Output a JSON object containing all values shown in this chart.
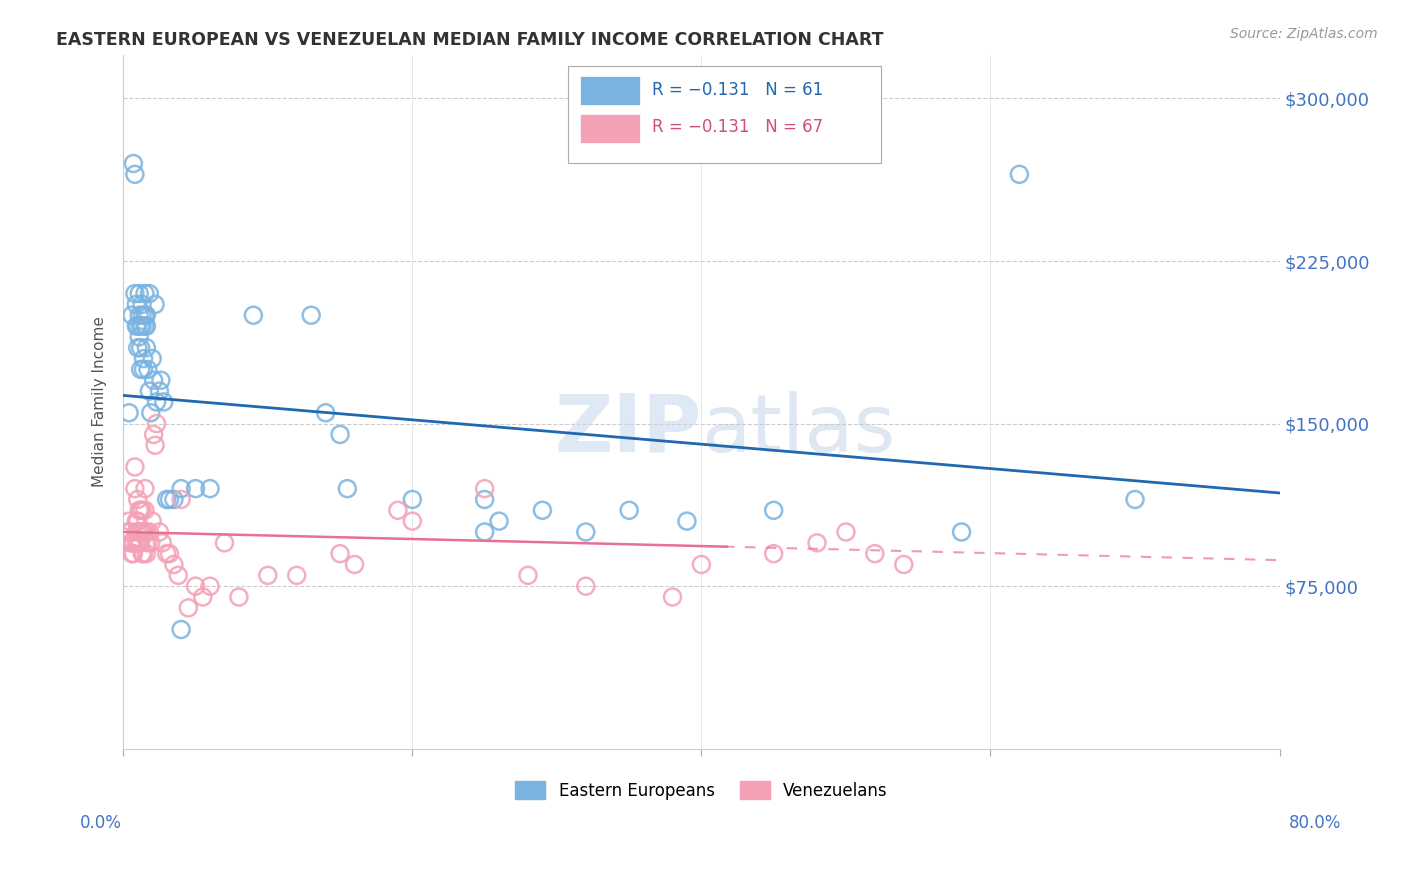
{
  "title": "EASTERN EUROPEAN VS VENEZUELAN MEDIAN FAMILY INCOME CORRELATION CHART",
  "source": "Source: ZipAtlas.com",
  "ylabel": "Median Family Income",
  "xlim": [
    0.0,
    0.8
  ],
  "ylim": [
    0,
    320000
  ],
  "watermark_zip": "ZIP",
  "watermark_atlas": "atlas",
  "blue_color": "#7ab3e0",
  "pink_color": "#f4a0b5",
  "blue_line_color": "#2068b0",
  "pink_line_color": "#e87090",
  "blue_scatter_edge": "#5b9bd5",
  "pink_scatter_edge": "#e87090",
  "ytick_vals": [
    75000,
    150000,
    225000,
    300000
  ],
  "ytick_labels": [
    "$75,000",
    "$150,000",
    "$225,000",
    "$300,000"
  ],
  "xtick_vals": [
    0.0,
    0.2,
    0.4,
    0.6,
    0.8
  ],
  "legend_r1": "R = −0.131   N = 61",
  "legend_r2": "R = −0.131   N = 67",
  "ee_x": [
    0.004,
    0.006,
    0.007,
    0.008,
    0.008,
    0.009,
    0.009,
    0.01,
    0.01,
    0.011,
    0.011,
    0.011,
    0.012,
    0.012,
    0.012,
    0.013,
    0.013,
    0.013,
    0.014,
    0.014,
    0.015,
    0.015,
    0.015,
    0.016,
    0.016,
    0.016,
    0.017,
    0.018,
    0.018,
    0.019,
    0.02,
    0.021,
    0.022,
    0.023,
    0.025,
    0.026,
    0.028,
    0.03,
    0.032,
    0.035,
    0.04,
    0.05,
    0.06,
    0.09,
    0.13,
    0.14,
    0.15,
    0.155,
    0.2,
    0.25,
    0.26,
    0.29,
    0.32,
    0.35,
    0.39,
    0.45,
    0.58,
    0.62,
    0.7,
    0.25,
    0.04
  ],
  "ee_y": [
    155000,
    200000,
    270000,
    265000,
    210000,
    205000,
    195000,
    185000,
    195000,
    210000,
    200000,
    190000,
    195000,
    185000,
    175000,
    205000,
    200000,
    195000,
    180000,
    175000,
    210000,
    200000,
    195000,
    200000,
    195000,
    185000,
    175000,
    165000,
    210000,
    155000,
    180000,
    170000,
    205000,
    160000,
    165000,
    170000,
    160000,
    115000,
    115000,
    115000,
    120000,
    120000,
    120000,
    200000,
    200000,
    155000,
    145000,
    120000,
    115000,
    115000,
    105000,
    110000,
    100000,
    110000,
    105000,
    110000,
    100000,
    265000,
    115000,
    100000,
    55000
  ],
  "ven_x": [
    0.003,
    0.004,
    0.005,
    0.005,
    0.006,
    0.006,
    0.007,
    0.007,
    0.008,
    0.008,
    0.009,
    0.009,
    0.009,
    0.01,
    0.01,
    0.01,
    0.011,
    0.011,
    0.011,
    0.012,
    0.012,
    0.012,
    0.013,
    0.013,
    0.013,
    0.014,
    0.014,
    0.015,
    0.015,
    0.016,
    0.016,
    0.017,
    0.018,
    0.019,
    0.02,
    0.021,
    0.022,
    0.023,
    0.025,
    0.027,
    0.03,
    0.032,
    0.035,
    0.038,
    0.04,
    0.045,
    0.05,
    0.055,
    0.06,
    0.07,
    0.08,
    0.1,
    0.12,
    0.15,
    0.16,
    0.19,
    0.2,
    0.25,
    0.28,
    0.32,
    0.38,
    0.4,
    0.45,
    0.48,
    0.5,
    0.52,
    0.54
  ],
  "ven_y": [
    100000,
    105000,
    100000,
    95000,
    95000,
    90000,
    95000,
    90000,
    130000,
    120000,
    105000,
    100000,
    95000,
    115000,
    105000,
    95000,
    110000,
    100000,
    95000,
    110000,
    100000,
    95000,
    110000,
    100000,
    90000,
    100000,
    90000,
    120000,
    110000,
    100000,
    90000,
    95000,
    100000,
    95000,
    105000,
    145000,
    140000,
    150000,
    100000,
    95000,
    90000,
    90000,
    85000,
    80000,
    115000,
    65000,
    75000,
    70000,
    75000,
    95000,
    70000,
    80000,
    80000,
    90000,
    85000,
    110000,
    105000,
    120000,
    80000,
    75000,
    70000,
    85000,
    90000,
    95000,
    100000,
    90000,
    85000
  ]
}
